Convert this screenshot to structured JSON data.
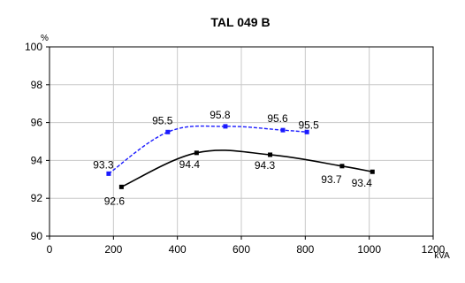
{
  "chart_data": {
    "type": "line",
    "title": "TAL 049 B",
    "xlabel": "kVA",
    "ylabel": "%",
    "xlim": [
      0,
      1200
    ],
    "ylim": [
      90,
      100
    ],
    "x_ticks": [
      0,
      200,
      400,
      600,
      800,
      1000,
      1200
    ],
    "y_ticks": [
      90,
      92,
      94,
      96,
      98,
      100
    ],
    "x_tick_labels": [
      "0",
      "200",
      "400",
      "600",
      "800",
      "1000",
      "1200"
    ],
    "y_tick_labels": [
      "90",
      "92",
      "94",
      "96",
      "98",
      "100"
    ],
    "grid": true,
    "legend": "none",
    "series": [
      {
        "color": "#1a1aff",
        "style": "dashed",
        "marker": "square",
        "points": [
          {
            "x": 185,
            "y": 93.3,
            "label": "93.3"
          },
          {
            "x": 370,
            "y": 95.5,
            "label": "95.5"
          },
          {
            "x": 550,
            "y": 95.8,
            "label": "95.8"
          },
          {
            "x": 730,
            "y": 95.6,
            "label": "95.6"
          },
          {
            "x": 805,
            "y": 95.5,
            "label": "95.5"
          }
        ]
      },
      {
        "color": "#000000",
        "style": "solid",
        "marker": "square",
        "points": [
          {
            "x": 225,
            "y": 92.6,
            "label": "92.6"
          },
          {
            "x": 460,
            "y": 94.4,
            "label": "94.4"
          },
          {
            "x": 690,
            "y": 94.3,
            "label": "94.3"
          },
          {
            "x": 915,
            "y": 93.7,
            "label": "93.7"
          },
          {
            "x": 1010,
            "y": 93.4,
            "label": "93.4"
          }
        ]
      }
    ]
  }
}
